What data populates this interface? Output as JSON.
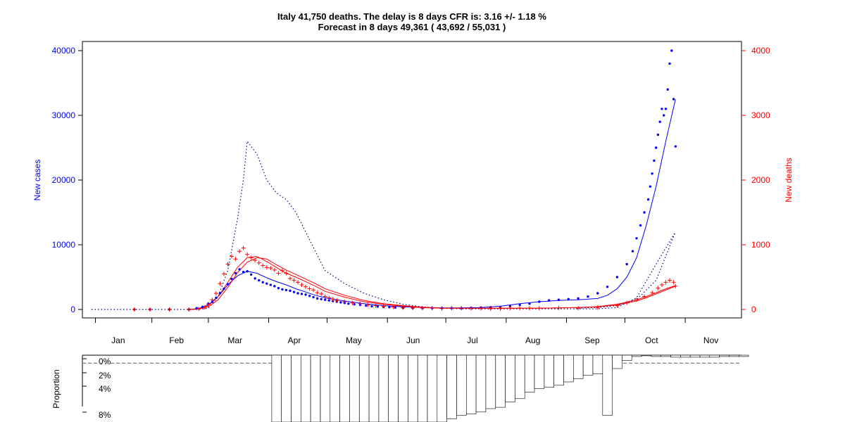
{
  "title_line1": "Italy 41,750 deaths. The delay is 8 days CFR is: 3.16 +/- 1.18 %",
  "title_line2": "Forecast in 8 days 49,361 ( 43,692 / 55,031 )",
  "colors": {
    "cases": "#0000ff",
    "deaths": "#ff0000",
    "dotted": "#00008b",
    "black": "#000000",
    "grey": "#808080"
  },
  "chart_data": [
    {
      "type": "scatter",
      "xlabel": "",
      "ylabel_left": "New cases",
      "ylabel_right": "New deaths",
      "ylim_left": [
        0,
        40000
      ],
      "ylim_right": [
        0,
        4000
      ],
      "y_ticks_left": [
        "0",
        "10000",
        "20000",
        "30000",
        "40000"
      ],
      "y_ticks_right": [
        "0",
        "1000",
        "2000",
        "3000",
        "4000"
      ],
      "x_ticks": [
        "Jan",
        "Feb",
        "Mar",
        "Apr",
        "May",
        "Jun",
        "Jul",
        "Aug",
        "Sep",
        "Oct",
        "Nov"
      ],
      "x_unit": "day of 2020",
      "grid": false,
      "series": [
        {
          "kind": "cases_points",
          "axis": "left",
          "x": [
            22,
            30,
            40,
            50,
            54,
            57,
            60,
            62,
            64,
            66,
            68,
            70,
            72,
            74,
            76,
            78,
            80,
            82,
            84,
            86,
            88,
            90,
            92,
            94,
            96,
            98,
            100,
            102,
            104,
            106,
            108,
            110,
            112,
            114,
            116,
            118,
            120,
            122,
            124,
            126,
            128,
            130,
            132,
            135,
            138,
            141,
            144,
            147,
            150,
            153,
            156,
            160,
            165,
            170,
            175,
            180,
            185,
            190,
            195,
            200,
            205,
            210,
            215,
            220,
            225,
            230,
            235,
            240,
            245,
            250,
            255,
            260,
            265,
            270,
            275,
            278,
            280,
            282,
            284,
            286,
            287,
            288,
            289,
            290,
            291,
            292,
            293,
            294,
            295,
            296,
            297,
            298,
            299,
            300
          ],
          "y": [
            0,
            0,
            0,
            0,
            200,
            400,
            900,
            1200,
            1800,
            2500,
            3200,
            3900,
            4700,
            5600,
            6200,
            5800,
            5900,
            5400,
            4800,
            4500,
            4200,
            4000,
            3800,
            3600,
            3300,
            3100,
            3000,
            2900,
            2700,
            2500,
            2400,
            2300,
            2100,
            1900,
            1700,
            1600,
            1500,
            1400,
            1300,
            1200,
            1100,
            1000,
            900,
            800,
            700,
            600,
            500,
            450,
            400,
            350,
            300,
            250,
            200,
            200,
            200,
            200,
            200,
            200,
            250,
            300,
            350,
            400,
            500,
            700,
            900,
            1200,
            1400,
            1500,
            1600,
            1700,
            2000,
            2500,
            3500,
            5000,
            7000,
            9000,
            11000,
            13000,
            15000,
            17000,
            19000,
            21000,
            23000,
            25000,
            27000,
            29000,
            31000,
            30000,
            31000,
            34000,
            38000,
            40000,
            32500,
            25200
          ]
        },
        {
          "kind": "cases_smooth",
          "axis": "left",
          "x": [
            50,
            55,
            60,
            65,
            70,
            75,
            80,
            85,
            90,
            95,
            100,
            105,
            110,
            115,
            120,
            130,
            140,
            150,
            160,
            170,
            180,
            190,
            200,
            210,
            220,
            230,
            240,
            250,
            260,
            265,
            270,
            275,
            280,
            285,
            290,
            295,
            300
          ],
          "y": [
            0,
            150,
            700,
            2000,
            3800,
            5200,
            5900,
            5600,
            4900,
            4300,
            3800,
            3200,
            2700,
            2200,
            1800,
            1300,
            900,
            600,
            400,
            300,
            250,
            250,
            300,
            500,
            900,
            1200,
            1400,
            1500,
            1700,
            2200,
            3200,
            5000,
            8000,
            13000,
            19000,
            26000,
            32500
          ]
        },
        {
          "kind": "cases_dotted_trend",
          "axis": "left",
          "x": [
            0,
            20,
            40,
            45,
            50,
            55,
            60,
            65,
            70,
            75,
            78,
            80,
            85,
            90,
            95,
            100,
            105,
            110,
            115,
            120,
            130,
            140,
            150,
            160,
            170,
            180,
            190,
            200,
            210,
            220,
            230,
            240,
            250,
            260,
            270,
            280,
            290,
            300
          ],
          "y": [
            0,
            0,
            0,
            0,
            0,
            0,
            200,
            2000,
            6000,
            14000,
            20000,
            26000,
            24000,
            20000,
            18000,
            17000,
            15000,
            12000,
            9000,
            6000,
            4000,
            2500,
            1500,
            800,
            400,
            200,
            100,
            100,
            100,
            100,
            100,
            100,
            100,
            100,
            300,
            1800,
            7000,
            12000
          ]
        },
        {
          "kind": "deaths_points",
          "axis": "right",
          "x": [
            22,
            30,
            40,
            50,
            55,
            58,
            60,
            62,
            64,
            66,
            68,
            70,
            72,
            74,
            76,
            78,
            80,
            82,
            84,
            86,
            88,
            90,
            92,
            94,
            96,
            98,
            100,
            102,
            104,
            106,
            108,
            110,
            112,
            114,
            116,
            118,
            120,
            122,
            124,
            126,
            130,
            134,
            138,
            142,
            146,
            150,
            155,
            160,
            165,
            170,
            175,
            180,
            185,
            190,
            195,
            200,
            205,
            210,
            215,
            220,
            225,
            230,
            240,
            250,
            260,
            270,
            275,
            280,
            284,
            288,
            291,
            293,
            295,
            297,
            299,
            300
          ],
          "y": [
            0,
            0,
            0,
            0,
            10,
            30,
            80,
            150,
            250,
            400,
            550,
            700,
            820,
            780,
            900,
            950,
            850,
            800,
            760,
            720,
            680,
            650,
            640,
            610,
            560,
            600,
            560,
            480,
            450,
            420,
            380,
            350,
            320,
            300,
            260,
            240,
            200,
            180,
            160,
            140,
            120,
            100,
            90,
            70,
            60,
            50,
            40,
            30,
            25,
            20,
            20,
            15,
            20,
            20,
            15,
            15,
            12,
            15,
            20,
            20,
            20,
            20,
            25,
            20,
            30,
            60,
            100,
            150,
            200,
            260,
            330,
            380,
            420,
            450,
            420,
            360
          ]
        },
        {
          "kind": "deaths_smooth_a",
          "axis": "right",
          "x": [
            50,
            55,
            60,
            65,
            70,
            75,
            80,
            85,
            90,
            95,
            100,
            105,
            110,
            115,
            120,
            130,
            140,
            150,
            160,
            170,
            180,
            190,
            200,
            210,
            220,
            230,
            240,
            250,
            260,
            270,
            280,
            285,
            290,
            295,
            300
          ],
          "y": [
            0,
            10,
            60,
            200,
            420,
            650,
            800,
            820,
            740,
            650,
            560,
            500,
            430,
            360,
            280,
            190,
            120,
            80,
            50,
            30,
            20,
            20,
            18,
            18,
            20,
            20,
            25,
            30,
            40,
            70,
            130,
            180,
            240,
            300,
            360
          ]
        },
        {
          "kind": "deaths_smooth_b",
          "axis": "right",
          "x": [
            50,
            55,
            60,
            65,
            70,
            75,
            80,
            85,
            90,
            95,
            100,
            105,
            110,
            115,
            120,
            130,
            140,
            150,
            160,
            170,
            180,
            190,
            200,
            210,
            220,
            230,
            240,
            250,
            260,
            270,
            280,
            285,
            290,
            295,
            300
          ],
          "y": [
            0,
            5,
            40,
            150,
            340,
            570,
            730,
            800,
            780,
            690,
            610,
            540,
            470,
            400,
            320,
            220,
            140,
            90,
            60,
            35,
            22,
            20,
            18,
            18,
            20,
            20,
            25,
            30,
            45,
            80,
            150,
            200,
            260,
            320,
            370
          ]
        },
        {
          "kind": "deaths_dotted_trend",
          "axis": "right",
          "x": [
            250,
            260,
            270,
            280,
            290,
            300
          ],
          "y": [
            20,
            30,
            60,
            150,
            450,
            1200
          ]
        }
      ]
    },
    {
      "type": "bar",
      "ylabel": "Proportion",
      "y_ticks": [
        "0%",
        "2%",
        "4%",
        "8%"
      ],
      "reference_line_pct": 0.6,
      "x_unit": "day of 2020",
      "x": [
        60,
        65,
        70,
        75,
        80,
        85,
        90,
        95,
        100,
        105,
        110,
        115,
        120,
        125,
        130,
        135,
        140,
        145,
        150,
        155,
        160,
        165,
        170,
        175,
        180,
        185,
        190,
        195,
        200,
        205,
        210,
        215,
        220,
        225,
        230,
        235,
        240,
        245,
        250,
        255,
        260,
        265,
        270,
        275,
        280,
        285,
        290,
        295,
        300
      ],
      "values": [
        10,
        10,
        10,
        10,
        10,
        10,
        10,
        10,
        10,
        10,
        10,
        10,
        10,
        10,
        10,
        10,
        10,
        10,
        9.5,
        9.0,
        8.8,
        8.5,
        8.0,
        7.8,
        7.0,
        6.5,
        5.5,
        5.0,
        4.8,
        4.5,
        4.0,
        3.5,
        3.0,
        2.8,
        9.0,
        2.0,
        0.8,
        0.2,
        0.1,
        0.2,
        0.2,
        0.3,
        0.3,
        0.3,
        0.3,
        0.3,
        0.2,
        0.2,
        0.2
      ]
    }
  ]
}
